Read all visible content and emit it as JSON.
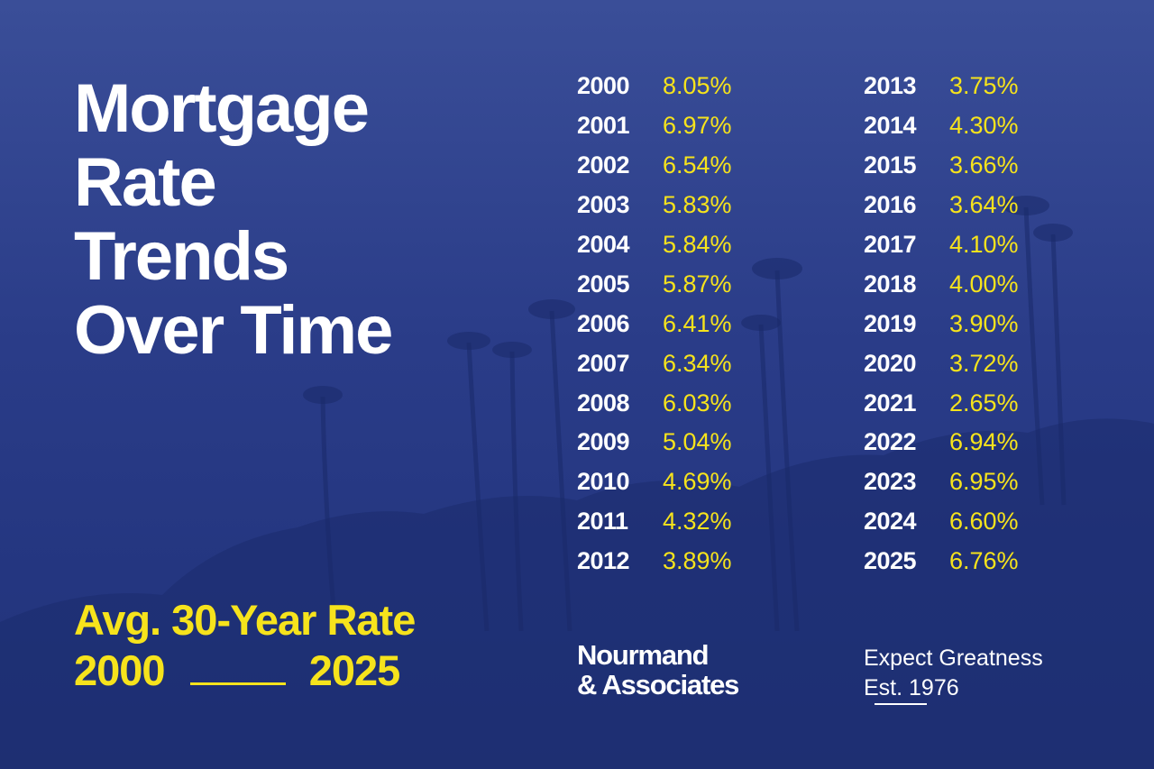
{
  "title": {
    "lines": [
      "Mortgage",
      "Rate",
      "Trends",
      "Over Time"
    ]
  },
  "subtitle": {
    "line1": "Avg. 30-Year Rate",
    "start_year": "2000",
    "end_year": "2025"
  },
  "rates": {
    "left": [
      {
        "year": "2000",
        "rate": "8.05%"
      },
      {
        "year": "2001",
        "rate": "6.97%"
      },
      {
        "year": "2002",
        "rate": "6.54%"
      },
      {
        "year": "2003",
        "rate": "5.83%"
      },
      {
        "year": "2004",
        "rate": "5.84%"
      },
      {
        "year": "2005",
        "rate": "5.87%"
      },
      {
        "year": "2006",
        "rate": "6.41%"
      },
      {
        "year": "2007",
        "rate": "6.34%"
      },
      {
        "year": "2008",
        "rate": "6.03%"
      },
      {
        "year": "2009",
        "rate": "5.04%"
      },
      {
        "year": "2010",
        "rate": "4.69%"
      },
      {
        "year": "2011",
        "rate": "4.32%"
      },
      {
        "year": "2012",
        "rate": "3.89%"
      }
    ],
    "right": [
      {
        "year": "2013",
        "rate": "3.75%"
      },
      {
        "year": "2014",
        "rate": "4.30%"
      },
      {
        "year": "2015",
        "rate": "3.66%"
      },
      {
        "year": "2016",
        "rate": "3.64%"
      },
      {
        "year": "2017",
        "rate": "4.10%"
      },
      {
        "year": "2018",
        "rate": "4.00%"
      },
      {
        "year": "2019",
        "rate": "3.90%"
      },
      {
        "year": "2020",
        "rate": "3.72%"
      },
      {
        "year": "2021",
        "rate": "2.65%"
      },
      {
        "year": "2022",
        "rate": "6.94%"
      },
      {
        "year": "2023",
        "rate": "6.95%"
      },
      {
        "year": "2024",
        "rate": "6.60%"
      },
      {
        "year": "2025",
        "rate": "6.76%"
      }
    ]
  },
  "brand": {
    "line1": "Nourmand",
    "line2": "& Associates"
  },
  "tagline": {
    "line1": "Expect Greatness",
    "line2": "Est. 1976"
  },
  "colors": {
    "background": "#2a3c88",
    "accent": "#f6e31c",
    "text": "#ffffff"
  }
}
